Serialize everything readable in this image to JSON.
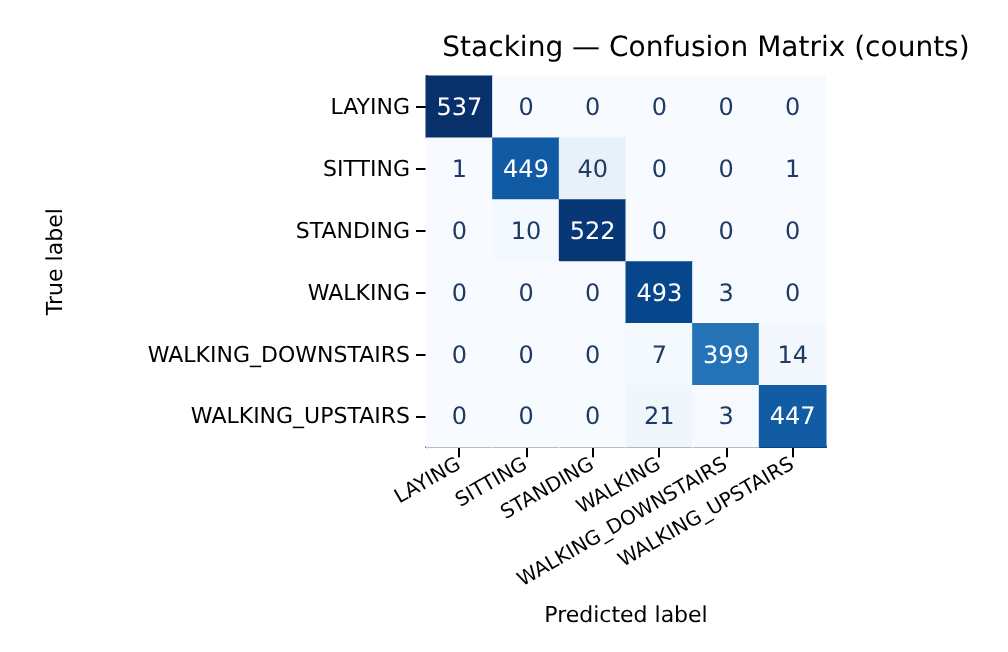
{
  "chart_data": {
    "type": "heatmap",
    "title": "Stacking — Confusion Matrix (counts)",
    "xlabel": "Predicted label",
    "ylabel": "True label",
    "categories": [
      "LAYING",
      "SITTING",
      "STANDING",
      "WALKING",
      "WALKING_DOWNSTAIRS",
      "WALKING_UPSTAIRS"
    ],
    "y_categories": [
      "LAYING",
      "SITTING",
      "STANDING",
      "WALKING",
      "WALKING_DOWNSTAIRS",
      "WALKING_UPSTAIRS"
    ],
    "cells": [
      [
        537,
        0,
        0,
        0,
        0,
        0
      ],
      [
        1,
        449,
        40,
        0,
        0,
        1
      ],
      [
        0,
        10,
        522,
        0,
        0,
        0
      ],
      [
        0,
        0,
        0,
        493,
        3,
        0
      ],
      [
        0,
        0,
        0,
        7,
        399,
        14
      ],
      [
        0,
        0,
        0,
        21,
        3,
        447
      ]
    ],
    "data_labels": true
  }
}
